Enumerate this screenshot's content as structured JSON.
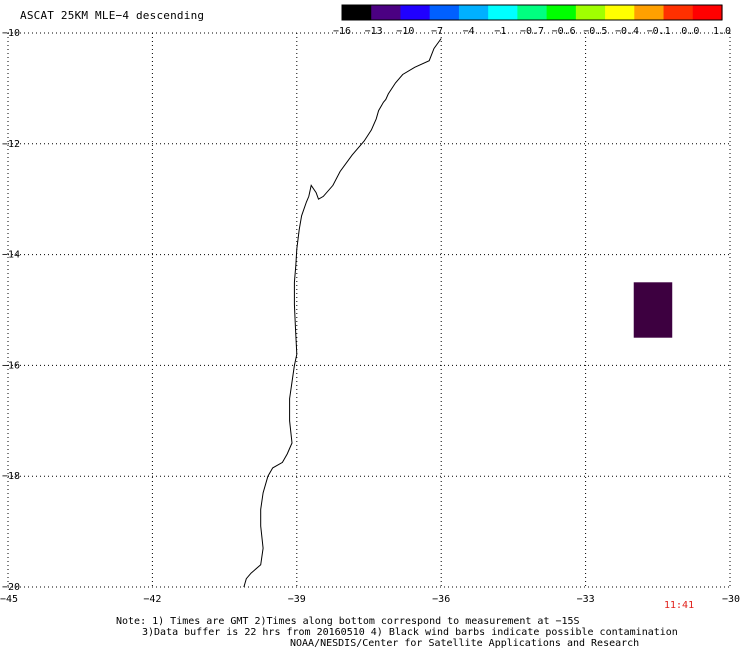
{
  "header": {
    "title": "ASCAT 25KM MLE−4 descending"
  },
  "colorbar": {
    "labels": [
      "−16",
      "−13",
      "−10",
      "−7",
      "−4",
      "−1",
      "−0.7",
      "−0.6",
      "−0.5",
      "−0.4",
      "−0.1",
      "0.0",
      "1.0"
    ],
    "colors": [
      "#000000",
      "#4b0082",
      "#2000ff",
      "#0060ff",
      "#00b0ff",
      "#00ffff",
      "#00ff80",
      "#00ff00",
      "#a0ff00",
      "#ffff00",
      "#ffa000",
      "#ff3000",
      "#ff0000"
    ]
  },
  "map": {
    "lon_labels": [
      "−45",
      "−42",
      "−39",
      "−36",
      "−33",
      "−30"
    ],
    "lat_labels": [
      "−10",
      "−12",
      "−14",
      "−16",
      "−18",
      "−20"
    ],
    "lon_range": [
      -45,
      -30
    ],
    "lat_range": [
      -20,
      -10
    ],
    "data_patch": {
      "lon": [
        -32,
        -31.2
      ],
      "lat": [
        -15.5,
        -14.5
      ],
      "color": "#3d0040"
    },
    "coast_color": "#000000",
    "grid": "dotted"
  },
  "time_label": "11:41",
  "notes": [
    "Note: 1) Times are GMT 2)Times along bottom correspond to measurement at −15S",
    "3)Data buffer is 22 hrs from 20160510 4) Black wind barbs indicate possible contamination",
    "NOAA/NESDIS/Center for Satellite Applications and Research"
  ]
}
